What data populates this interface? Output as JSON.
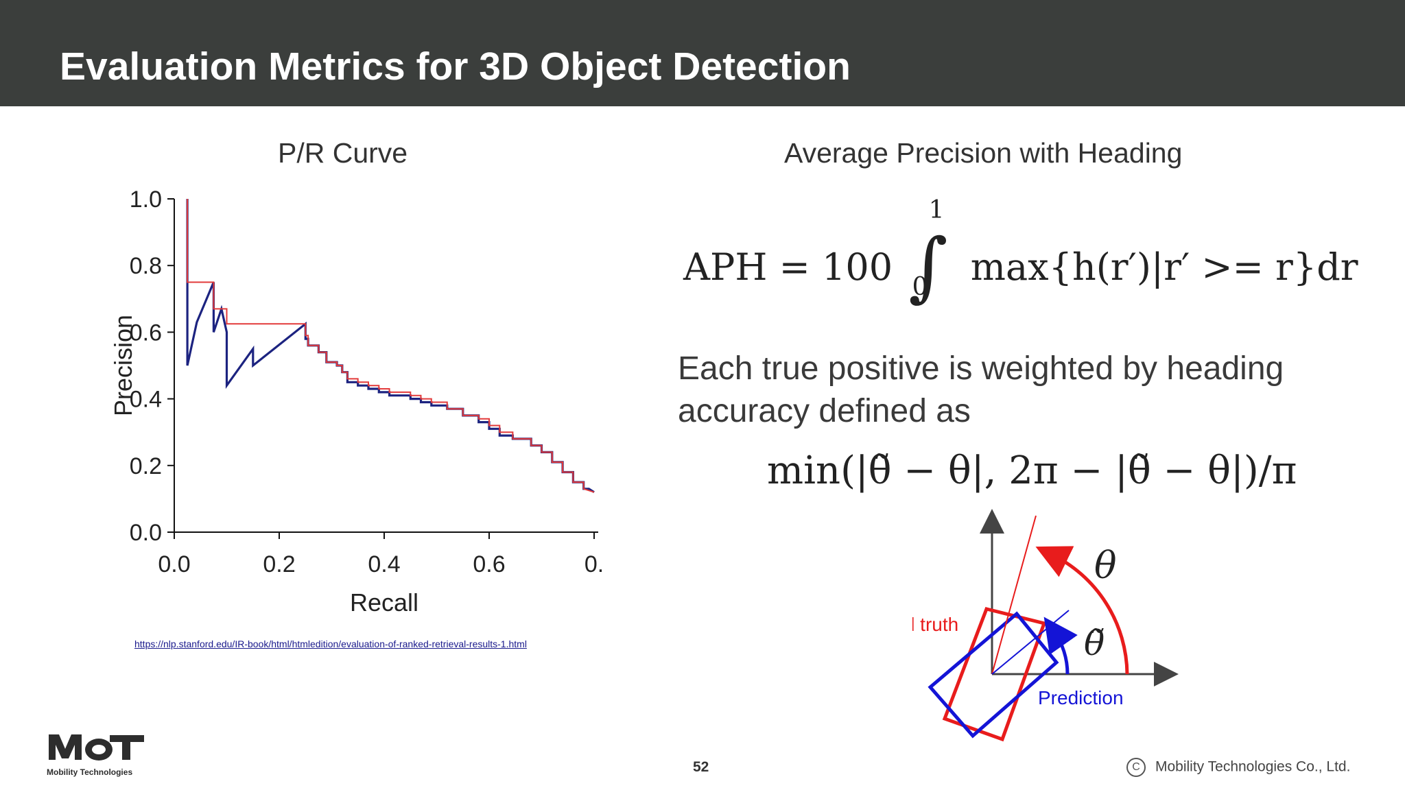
{
  "slide": {
    "title": "Evaluation Metrics for 3D Object Detection",
    "left_heading": "P/R Curve",
    "right_heading": "Average Precision with Heading",
    "aph_formula": {
      "lhs": "APH = 100",
      "upper": "1",
      "lower": "0",
      "body": "max{h(r′)|r′ >= r}dr"
    },
    "body_text": "Each true positive is weighted by heading accuracy defined as",
    "heading_formula": "min(|θ̃ − θ|, 2π − |θ̃ − θ|)/π",
    "source_url": "https://nlp.stanford.edu/IR-book/html/htmledition/evaluation-of-ranked-retrieval-results-1.html",
    "page_number": "52",
    "copyright": "Mobility Technologies Co., Ltd.",
    "copyright_symbol": "C",
    "logo_text": "Mobility Technologies",
    "colors": {
      "header": "#3b3e3c",
      "interpolated": "#e23a3a",
      "raw": "#1c2380",
      "ground_truth": "#e81c1c",
      "prediction": "#1414d6"
    }
  },
  "chart_data": {
    "type": "line",
    "xlabel": "Recall",
    "ylabel": "Precision",
    "xlim": [
      0.0,
      0.8
    ],
    "ylim": [
      0.0,
      1.0
    ],
    "x_ticks": [
      "0.0",
      "0.2",
      "0.4",
      "0.6",
      "0."
    ],
    "y_ticks": [
      "1.0",
      "0.8",
      "0.6",
      "0.4",
      "0.2",
      "0.0"
    ],
    "series": [
      {
        "style": "raw",
        "x": [
          0.025,
          0.025,
          0.025,
          0.043,
          0.075,
          0.075,
          0.075,
          0.09,
          0.1,
          0.1,
          0.1,
          0.15,
          0.15,
          0.15,
          0.25,
          0.25,
          0.25,
          0.255,
          0.255,
          0.275,
          0.275,
          0.29,
          0.29,
          0.31,
          0.31,
          0.32,
          0.32,
          0.33,
          0.33,
          0.35,
          0.35,
          0.37,
          0.37,
          0.39,
          0.39,
          0.41,
          0.41,
          0.45,
          0.45,
          0.47,
          0.47,
          0.49,
          0.49,
          0.52,
          0.52,
          0.55,
          0.55,
          0.58,
          0.58,
          0.6,
          0.6,
          0.62,
          0.62,
          0.645,
          0.645,
          0.68,
          0.68,
          0.7,
          0.7,
          0.72,
          0.72,
          0.74,
          0.74,
          0.76,
          0.76,
          0.78,
          0.78,
          0.79,
          0.8
        ],
        "y": [
          1.0,
          0.75,
          0.5,
          0.63,
          0.75,
          0.6,
          0.6,
          0.67,
          0.6,
          0.44,
          0.44,
          0.55,
          0.5,
          0.5,
          0.625,
          0.625,
          0.58,
          0.58,
          0.56,
          0.56,
          0.54,
          0.54,
          0.51,
          0.51,
          0.5,
          0.5,
          0.48,
          0.48,
          0.45,
          0.45,
          0.44,
          0.44,
          0.43,
          0.43,
          0.42,
          0.42,
          0.41,
          0.41,
          0.4,
          0.4,
          0.39,
          0.39,
          0.38,
          0.38,
          0.37,
          0.37,
          0.35,
          0.35,
          0.33,
          0.33,
          0.31,
          0.31,
          0.29,
          0.29,
          0.28,
          0.28,
          0.26,
          0.26,
          0.24,
          0.24,
          0.21,
          0.21,
          0.18,
          0.18,
          0.15,
          0.15,
          0.13,
          0.13,
          0.12
        ]
      },
      {
        "style": "interpolated",
        "x": [
          0.025,
          0.025,
          0.075,
          0.075,
          0.1,
          0.1,
          0.25,
          0.25,
          0.255,
          0.255,
          0.275,
          0.275,
          0.29,
          0.29,
          0.31,
          0.31,
          0.32,
          0.32,
          0.33,
          0.33,
          0.35,
          0.35,
          0.37,
          0.37,
          0.39,
          0.39,
          0.41,
          0.41,
          0.45,
          0.45,
          0.47,
          0.47,
          0.49,
          0.49,
          0.52,
          0.52,
          0.55,
          0.55,
          0.58,
          0.58,
          0.6,
          0.6,
          0.62,
          0.62,
          0.645,
          0.645,
          0.68,
          0.68,
          0.7,
          0.7,
          0.72,
          0.72,
          0.74,
          0.74,
          0.76,
          0.76,
          0.78,
          0.78,
          0.8
        ],
        "y": [
          1.0,
          0.75,
          0.75,
          0.67,
          0.67,
          0.625,
          0.625,
          0.59,
          0.59,
          0.56,
          0.56,
          0.54,
          0.54,
          0.51,
          0.51,
          0.5,
          0.5,
          0.48,
          0.48,
          0.46,
          0.46,
          0.45,
          0.45,
          0.44,
          0.44,
          0.43,
          0.43,
          0.42,
          0.42,
          0.41,
          0.41,
          0.4,
          0.4,
          0.39,
          0.39,
          0.37,
          0.37,
          0.35,
          0.35,
          0.34,
          0.34,
          0.32,
          0.32,
          0.3,
          0.3,
          0.28,
          0.28,
          0.26,
          0.26,
          0.24,
          0.24,
          0.21,
          0.21,
          0.18,
          0.18,
          0.15,
          0.15,
          0.13,
          0.12
        ]
      }
    ]
  },
  "diagram": {
    "theta_label": "θ",
    "theta_tilde_label": "θ̃",
    "ground_truth_label": "Ground truth",
    "prediction_label": "Prediction"
  }
}
